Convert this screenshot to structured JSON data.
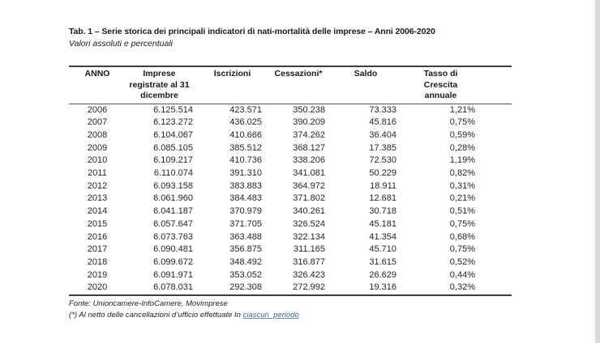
{
  "page": {
    "title": "Tab. 1 – Serie storica dei principali indicatori di nati-mortalità delle imprese – Anni 2006-2020",
    "subtitle": "Valori assoluti e percentuali"
  },
  "table": {
    "columns": [
      "ANNO",
      "Imprese\nregistrate al 31\ndicembre",
      "Iscrizioni",
      "Cessazioni*",
      "Saldo",
      "Tasso di\nCrescita\nannuale"
    ],
    "rows": [
      [
        "2006",
        "6.125.514",
        "423.571",
        "350.238",
        "73.333",
        "1,21%"
      ],
      [
        "2007",
        "6.123.272",
        "436.025",
        "390.209",
        "45.816",
        "0,75%"
      ],
      [
        "2008",
        "6.104.067",
        "410.666",
        "374.262",
        "36.404",
        "0,59%"
      ],
      [
        "2009",
        "6.085.105",
        "385.512",
        "368.127",
        "17.385",
        "0,28%"
      ],
      [
        "2010",
        "6.109.217",
        "410.736",
        "338.206",
        "72.530",
        "1,19%"
      ],
      [
        "2011",
        "6.110.074",
        "391.310",
        "341.081",
        "50.229",
        "0,82%"
      ],
      [
        "2012",
        "6.093.158",
        "383.883",
        "364.972",
        "18.911",
        "0,31%"
      ],
      [
        "2013",
        "6.061.960",
        "384.483",
        "371.802",
        "12.681",
        "0,21%"
      ],
      [
        "2014",
        "6.041.187",
        "370.979",
        "340.261",
        "30.718",
        "0,51%"
      ],
      [
        "2015",
        "6.057.647",
        "371.705",
        "326.524",
        "45.181",
        "0,75%"
      ],
      [
        "2016",
        "6.073.763",
        "363.488",
        "322.134",
        "41.354",
        "0,68%"
      ],
      [
        "2017",
        "6.090.481",
        "356.875",
        "311.165",
        "45.710",
        "0,75%"
      ],
      [
        "2018",
        "6.099.672",
        "348.492",
        "316.877",
        "31.615",
        "0,52%"
      ],
      [
        "2019",
        "6.091.971",
        "353.052",
        "326.423",
        "26.629",
        "0,44%"
      ],
      [
        "2020",
        "6.078.031",
        "292.308",
        "272.992",
        "19.316",
        "0,32%"
      ]
    ]
  },
  "footnotes": {
    "source": "Fonte: Unioncamere-InfoCamere, Movimprese",
    "note_prefix": "(*) Al netto delle cancellazioni d’ufficio effettuate In ",
    "note_link": "ciascun  periodo"
  },
  "colors": {
    "border_heavy": "#3f3f3f",
    "border_light": "#595959",
    "link_text": "#44618c",
    "page_edge_strip": "#d9d9d9"
  }
}
